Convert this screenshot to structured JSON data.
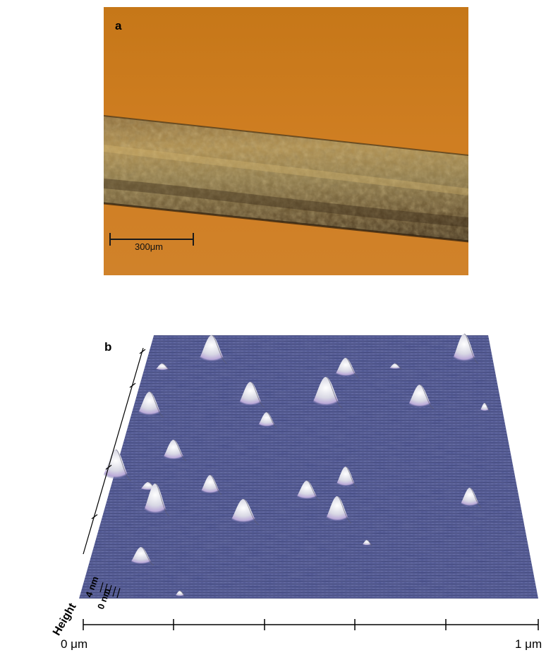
{
  "panel_a": {
    "letter": "a",
    "scale_bar_label": "300μm",
    "colors": {
      "background": "#c97a20",
      "fiber": "#7a5a2a"
    }
  },
  "panel_b": {
    "letter": "b",
    "x_axis_start": "0 μm",
    "x_axis_end": "1 μm",
    "z_label_top": "4 nm",
    "z_label_bottom": "0 nm",
    "z_axis_title": "Height",
    "colors": {
      "surface": "#4e5590",
      "peak": "#f2f2f5"
    }
  }
}
